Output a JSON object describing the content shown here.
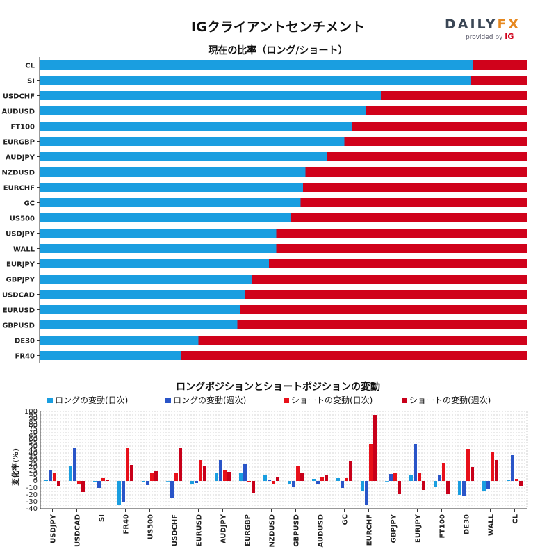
{
  "header": {
    "title": "IGクライアントセンチメント",
    "logo_main": "DAILY",
    "logo_fx": "FX",
    "logo_provided": "provided by",
    "logo_ig": "IG"
  },
  "colors": {
    "long": "#1a9ee0",
    "short": "#d0021b",
    "long_weekly": "#2a55c8",
    "short_weekly": "#c8001a"
  },
  "chart_data": [
    {
      "type": "bar",
      "orientation": "horizontal-stacked-percent",
      "title": "現在の比率（ロング/ショート）",
      "categories": [
        "CL",
        "SI",
        "USDCHF",
        "AUDUSD",
        "FT100",
        "EURGBP",
        "AUDJPY",
        "NZDUSD",
        "EURCHF",
        "GC",
        "US500",
        "USDJPY",
        "WALL",
        "EURJPY",
        "GBPJPY",
        "USDCAD",
        "EURUSD",
        "GBPUSD",
        "DE30",
        "FR40"
      ],
      "series": [
        {
          "name": "ロング",
          "values": [
            89,
            88.5,
            70,
            67,
            64,
            62.5,
            59,
            54.5,
            54,
            53.5,
            51.5,
            48.5,
            48.5,
            47,
            43.5,
            42,
            41,
            40.5,
            32.5,
            29
          ]
        },
        {
          "name": "ショート",
          "values": [
            11,
            11.5,
            30,
            33,
            36,
            37.5,
            41,
            45.5,
            46,
            46.5,
            48.5,
            51.5,
            51.5,
            53,
            56.5,
            58,
            59,
            59.5,
            67.5,
            71
          ]
        }
      ],
      "xlim": [
        0,
        100
      ]
    },
    {
      "type": "bar",
      "title": "ロングポジションとショートポジションの変動",
      "ylabel": "変化率(%)",
      "ylim": [
        -40,
        100
      ],
      "yticks": [
        -40,
        -30,
        -20,
        -10,
        0,
        5,
        10,
        15,
        20,
        25,
        30,
        35,
        40,
        45,
        50,
        55,
        60,
        65,
        70,
        75,
        80,
        85,
        90,
        95,
        100
      ],
      "categories": [
        "USDJPY",
        "USDCAD",
        "SI",
        "FR40",
        "US500",
        "USDCHF",
        "EURUSD",
        "AUDJPY",
        "EURGBP",
        "NZDUSD",
        "GBPUSD",
        "AUDUSD",
        "GC",
        "EURCHF",
        "GBPJPY",
        "EURJPY",
        "FT100",
        "DE30",
        "WALL",
        "CL"
      ],
      "series": [
        {
          "name": "ロングの変動(日次)",
          "values": [
            1,
            21,
            -2,
            -34,
            -2,
            0,
            -5,
            11,
            12,
            8,
            -4,
            3,
            4,
            -14,
            0,
            8,
            -9,
            -20,
            -15,
            2
          ]
        },
        {
          "name": "ロングの変動(週次)",
          "values": [
            16,
            47,
            -10,
            -30,
            -6,
            -24,
            -3,
            30,
            24,
            1,
            -9,
            -4,
            -10,
            -35,
            10,
            53,
            9,
            -22,
            -12,
            37
          ]
        },
        {
          "name": "ショートの変動(日次)",
          "values": [
            11,
            -4,
            4,
            48,
            11,
            12,
            30,
            16,
            -1,
            -5,
            22,
            6,
            4,
            53,
            12,
            11,
            26,
            46,
            42,
            3
          ]
        },
        {
          "name": "ショートの変動(週次)",
          "values": [
            -7,
            -16,
            1,
            23,
            15,
            48,
            21,
            13,
            -17,
            6,
            12,
            9,
            28,
            95,
            -19,
            -13,
            -19,
            20,
            30,
            -7
          ]
        }
      ]
    }
  ]
}
